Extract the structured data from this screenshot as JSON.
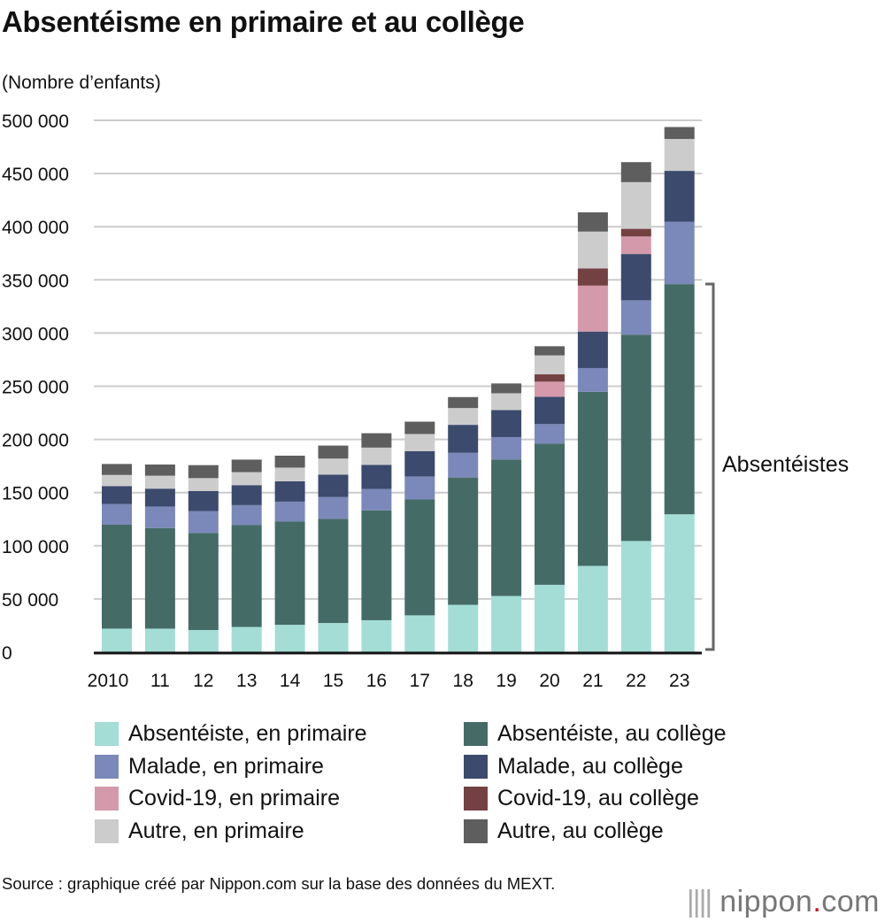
{
  "title": "Absentéisme en primaire et au collège",
  "unit_label": "(Nombre d’enfants)",
  "bracket_label": "Absentéistes",
  "source": "Source : graphique créé par Nippon.com sur la base des données du MEXT.",
  "logo": {
    "name": "nippon",
    "dot": ".",
    "tld": "com"
  },
  "chart_data": {
    "type": "bar",
    "stacked": true,
    "grid": true,
    "ylim": [
      0,
      500000
    ],
    "yticks": [
      "0",
      "50 000",
      "100 000",
      "150 000",
      "200 000",
      "250 000",
      "300 000",
      "350 000",
      "400 000",
      "450 000",
      "500 000"
    ],
    "categories": [
      "2010",
      "11",
      "12",
      "13",
      "14",
      "15",
      "16",
      "17",
      "18",
      "19",
      "20",
      "21",
      "22",
      "23"
    ],
    "legend_position": "bottom",
    "series": [
      {
        "name": "Absentéiste, en primaire",
        "color": "#a3ddd6",
        "values": [
          22100,
          22100,
          20800,
          23700,
          25700,
          27400,
          30000,
          34600,
          44500,
          52800,
          63300,
          81100,
          104500,
          129600
        ]
      },
      {
        "name": "Absentéiste, au collège",
        "color": "#456b66",
        "values": [
          97700,
          94600,
          91300,
          95700,
          97000,
          97900,
          103200,
          108900,
          119700,
          128300,
          132600,
          163600,
          194000,
          216400
        ]
      },
      {
        "name": "Malade, en primaire",
        "color": "#7a89b9",
        "values": [
          19400,
          20200,
          20500,
          18800,
          18800,
          20500,
          20200,
          21700,
          23400,
          21100,
          18500,
          22400,
          32300,
          58700
        ]
      },
      {
        "name": "Malade, au collège",
        "color": "#3b4a6d",
        "values": [
          16800,
          16800,
          18800,
          18800,
          19100,
          21100,
          22700,
          23800,
          26100,
          25400,
          25700,
          34300,
          43500,
          47800
        ]
      },
      {
        "name": "Covid-19, en primaire",
        "color": "#d49aab",
        "values": [
          0,
          0,
          0,
          0,
          0,
          0,
          0,
          0,
          0,
          0,
          14200,
          43200,
          16500,
          0
        ]
      },
      {
        "name": "Covid-19, au collège",
        "color": "#744143",
        "values": [
          0,
          0,
          0,
          0,
          0,
          0,
          0,
          0,
          0,
          0,
          6900,
          16200,
          7200,
          0
        ]
      },
      {
        "name": "Autre, en primaire",
        "color": "#cccccc",
        "values": [
          10600,
          12200,
          12200,
          12200,
          12900,
          15100,
          16200,
          16100,
          15800,
          15800,
          17800,
          34600,
          43900,
          30000
        ]
      },
      {
        "name": "Autre, au collège",
        "color": "#5e5e5e",
        "values": [
          10300,
          10500,
          12200,
          11800,
          11200,
          12200,
          13500,
          11600,
          10300,
          9200,
          8600,
          18100,
          18800,
          11200
        ]
      }
    ]
  }
}
